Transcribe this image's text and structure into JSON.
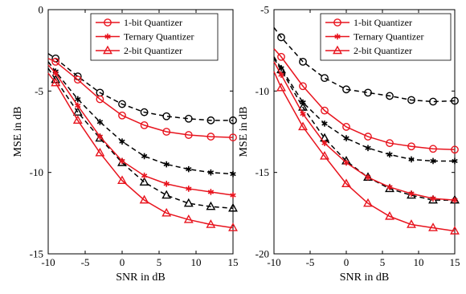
{
  "chart_data": [
    {
      "type": "line",
      "title": "",
      "xlabel": "SNR in dB",
      "ylabel": "MSE in dB",
      "xlim": [
        -10,
        15
      ],
      "ylim": [
        -15,
        0
      ],
      "xticks": [
        -10,
        -5,
        0,
        5,
        10,
        15
      ],
      "yticks": [
        0,
        -5,
        -10,
        -15
      ],
      "xtick_labels": [
        "-10",
        "-5",
        "0",
        "5",
        "10",
        "15"
      ],
      "ytick_labels": [
        "0",
        "-5",
        "-10",
        "-15"
      ],
      "grid": false,
      "legend_position": "top-right",
      "x": [
        -10,
        -9,
        -6,
        -3,
        0,
        3,
        6,
        9,
        12,
        15
      ],
      "series": [
        {
          "name": "1-bit Quantizer",
          "color": "#e8141e",
          "marker": "circle",
          "line": "solid",
          "values": [
            -3.0,
            -3.2,
            -4.3,
            -5.5,
            -6.5,
            -7.1,
            -7.5,
            -7.7,
            -7.8,
            -7.85
          ]
        },
        {
          "name": "Ternary Quantizer",
          "color": "#e8141e",
          "marker": "asterisk",
          "line": "solid",
          "values": [
            -3.4,
            -3.9,
            -5.9,
            -7.8,
            -9.3,
            -10.2,
            -10.7,
            -11.0,
            -11.2,
            -11.4
          ]
        },
        {
          "name": "2-bit Quantizer",
          "color": "#e8141e",
          "marker": "triangle",
          "line": "solid",
          "values": [
            -3.9,
            -4.5,
            -6.8,
            -8.8,
            -10.5,
            -11.7,
            -12.5,
            -12.9,
            -13.2,
            -13.4
          ]
        },
        {
          "name": "",
          "color": "#000000",
          "marker": "circle",
          "line": "dashed",
          "values": [
            -2.7,
            -3.0,
            -4.1,
            -5.1,
            -5.8,
            -6.3,
            -6.55,
            -6.7,
            -6.8,
            -6.8
          ]
        },
        {
          "name": "",
          "color": "#000000",
          "marker": "asterisk",
          "line": "dashed",
          "values": [
            -3.2,
            -3.8,
            -5.5,
            -6.9,
            -8.1,
            -9.0,
            -9.5,
            -9.8,
            -10.0,
            -10.1
          ]
        },
        {
          "name": "",
          "color": "#000000",
          "marker": "triangle",
          "line": "dashed",
          "values": [
            -3.6,
            -4.3,
            -6.3,
            -7.9,
            -9.4,
            -10.6,
            -11.4,
            -11.9,
            -12.1,
            -12.2
          ]
        }
      ],
      "legend": [
        "1-bit Quantizer",
        "Ternary Quantizer",
        "2-bit Quantizer"
      ]
    },
    {
      "type": "line",
      "title": "",
      "xlabel": "SNR in dB",
      "ylabel": "MSE in dB",
      "xlim": [
        -10,
        15
      ],
      "ylim": [
        -20,
        -5
      ],
      "xticks": [
        -10,
        -5,
        0,
        5,
        10,
        15
      ],
      "yticks": [
        -5,
        -10,
        -15,
        -20
      ],
      "xtick_labels": [
        "-10",
        "-5",
        "0",
        "5",
        "10",
        "15"
      ],
      "ytick_labels": [
        "-5",
        "-10",
        "-15",
        "-20"
      ],
      "grid": false,
      "legend_position": "top-right",
      "x": [
        -10,
        -9,
        -6,
        -3,
        0,
        3,
        6,
        9,
        12,
        15
      ],
      "series": [
        {
          "name": "1-bit Quantizer",
          "color": "#e8141e",
          "marker": "circle",
          "line": "solid",
          "values": [
            -7.4,
            -7.9,
            -9.7,
            -11.2,
            -12.2,
            -12.8,
            -13.2,
            -13.4,
            -13.55,
            -13.6
          ]
        },
        {
          "name": "Ternary Quantizer",
          "color": "#e8141e",
          "marker": "asterisk",
          "line": "solid",
          "values": [
            -8.2,
            -9.0,
            -11.4,
            -13.2,
            -14.4,
            -15.3,
            -15.9,
            -16.3,
            -16.6,
            -16.7
          ]
        },
        {
          "name": "2-bit Quantizer",
          "color": "#e8141e",
          "marker": "triangle",
          "line": "solid",
          "values": [
            -8.8,
            -9.8,
            -12.2,
            -14.0,
            -15.7,
            -16.9,
            -17.7,
            -18.2,
            -18.4,
            -18.6
          ]
        },
        {
          "name": "",
          "color": "#000000",
          "marker": "circle",
          "line": "dashed",
          "values": [
            -6.1,
            -6.7,
            -8.2,
            -9.2,
            -9.9,
            -10.1,
            -10.3,
            -10.55,
            -10.65,
            -10.6
          ]
        },
        {
          "name": "",
          "color": "#000000",
          "marker": "asterisk",
          "line": "dashed",
          "values": [
            -7.9,
            -8.6,
            -10.7,
            -12.0,
            -12.9,
            -13.5,
            -13.9,
            -14.2,
            -14.3,
            -14.3
          ]
        },
        {
          "name": "",
          "color": "#000000",
          "marker": "triangle",
          "line": "dashed",
          "values": [
            -8.0,
            -8.7,
            -11.0,
            -12.9,
            -14.3,
            -15.3,
            -16.0,
            -16.4,
            -16.7,
            -16.7
          ]
        }
      ],
      "legend": [
        "1-bit Quantizer",
        "Ternary Quantizer",
        "2-bit Quantizer"
      ]
    }
  ]
}
